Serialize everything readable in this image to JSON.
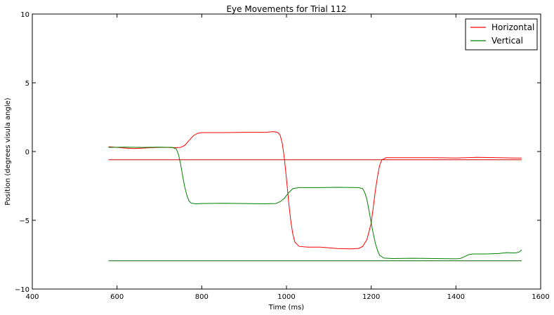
{
  "chart_data": {
    "type": "line",
    "title": "Eye Movements for Trial 112",
    "xlabel": "Time (ms)",
    "ylabel": "Position (degrees visula angle)",
    "xlim": [
      400,
      1600
    ],
    "ylim": [
      -10,
      10
    ],
    "xticks": [
      400,
      600,
      800,
      1000,
      1200,
      1400,
      1600
    ],
    "yticks": [
      -10,
      -5,
      0,
      5,
      10
    ],
    "ytick_labels": [
      "−10",
      "−5",
      "0",
      "5",
      "10"
    ],
    "grid": false,
    "legend_position": "top-right",
    "series": [
      {
        "name": "Horizontal",
        "color": "#ff0000",
        "points": [
          [
            580,
            0.35
          ],
          [
            600,
            0.3
          ],
          [
            620,
            0.25
          ],
          [
            640,
            0.22
          ],
          [
            660,
            0.25
          ],
          [
            680,
            0.28
          ],
          [
            700,
            0.3
          ],
          [
            720,
            0.3
          ],
          [
            740,
            0.28
          ],
          [
            750,
            0.3
          ],
          [
            760,
            0.45
          ],
          [
            770,
            0.8
          ],
          [
            780,
            1.15
          ],
          [
            790,
            1.32
          ],
          [
            800,
            1.38
          ],
          [
            850,
            1.38
          ],
          [
            900,
            1.4
          ],
          [
            950,
            1.4
          ],
          [
            970,
            1.45
          ],
          [
            980,
            1.38
          ],
          [
            985,
            1.2
          ],
          [
            990,
            0.6
          ],
          [
            995,
            -0.5
          ],
          [
            1000,
            -2.0
          ],
          [
            1005,
            -3.6
          ],
          [
            1010,
            -5.0
          ],
          [
            1015,
            -6.0
          ],
          [
            1020,
            -6.6
          ],
          [
            1030,
            -6.9
          ],
          [
            1050,
            -6.95
          ],
          [
            1080,
            -6.95
          ],
          [
            1120,
            -7.05
          ],
          [
            1150,
            -7.08
          ],
          [
            1170,
            -7.05
          ],
          [
            1180,
            -6.9
          ],
          [
            1190,
            -6.4
          ],
          [
            1200,
            -5.2
          ],
          [
            1205,
            -4.0
          ],
          [
            1210,
            -2.8
          ],
          [
            1215,
            -1.8
          ],
          [
            1220,
            -1.0
          ],
          [
            1225,
            -0.6
          ],
          [
            1235,
            -0.45
          ],
          [
            1260,
            -0.45
          ],
          [
            1300,
            -0.45
          ],
          [
            1350,
            -0.45
          ],
          [
            1400,
            -0.47
          ],
          [
            1450,
            -0.42
          ],
          [
            1500,
            -0.45
          ],
          [
            1540,
            -0.47
          ],
          [
            1555,
            -0.47
          ]
        ]
      },
      {
        "name": "Vertical",
        "color": "#008000",
        "points": [
          [
            580,
            0.3
          ],
          [
            620,
            0.32
          ],
          [
            660,
            0.3
          ],
          [
            700,
            0.32
          ],
          [
            730,
            0.3
          ],
          [
            740,
            0.2
          ],
          [
            745,
            -0.2
          ],
          [
            750,
            -0.9
          ],
          [
            755,
            -1.8
          ],
          [
            760,
            -2.6
          ],
          [
            765,
            -3.2
          ],
          [
            770,
            -3.6
          ],
          [
            775,
            -3.75
          ],
          [
            785,
            -3.8
          ],
          [
            800,
            -3.78
          ],
          [
            850,
            -3.76
          ],
          [
            900,
            -3.78
          ],
          [
            950,
            -3.8
          ],
          [
            975,
            -3.78
          ],
          [
            985,
            -3.65
          ],
          [
            995,
            -3.4
          ],
          [
            1005,
            -3.0
          ],
          [
            1015,
            -2.7
          ],
          [
            1030,
            -2.62
          ],
          [
            1080,
            -2.62
          ],
          [
            1120,
            -2.6
          ],
          [
            1170,
            -2.62
          ],
          [
            1180,
            -2.7
          ],
          [
            1185,
            -3.0
          ],
          [
            1190,
            -3.5
          ],
          [
            1195,
            -4.3
          ],
          [
            1200,
            -5.2
          ],
          [
            1205,
            -6.0
          ],
          [
            1210,
            -6.7
          ],
          [
            1215,
            -7.2
          ],
          [
            1220,
            -7.55
          ],
          [
            1230,
            -7.75
          ],
          [
            1250,
            -7.78
          ],
          [
            1300,
            -7.76
          ],
          [
            1350,
            -7.78
          ],
          [
            1400,
            -7.8
          ],
          [
            1410,
            -7.78
          ],
          [
            1420,
            -7.65
          ],
          [
            1430,
            -7.5
          ],
          [
            1440,
            -7.45
          ],
          [
            1470,
            -7.45
          ],
          [
            1500,
            -7.42
          ],
          [
            1520,
            -7.35
          ],
          [
            1540,
            -7.38
          ],
          [
            1550,
            -7.3
          ],
          [
            1555,
            -7.15
          ]
        ]
      },
      {
        "color": "#cc0000",
        "points": [
          [
            580,
            -0.6
          ],
          [
            1555,
            -0.6
          ]
        ]
      },
      {
        "color": "#006400",
        "points": [
          [
            580,
            -7.95
          ],
          [
            1555,
            -7.95
          ]
        ]
      }
    ]
  }
}
